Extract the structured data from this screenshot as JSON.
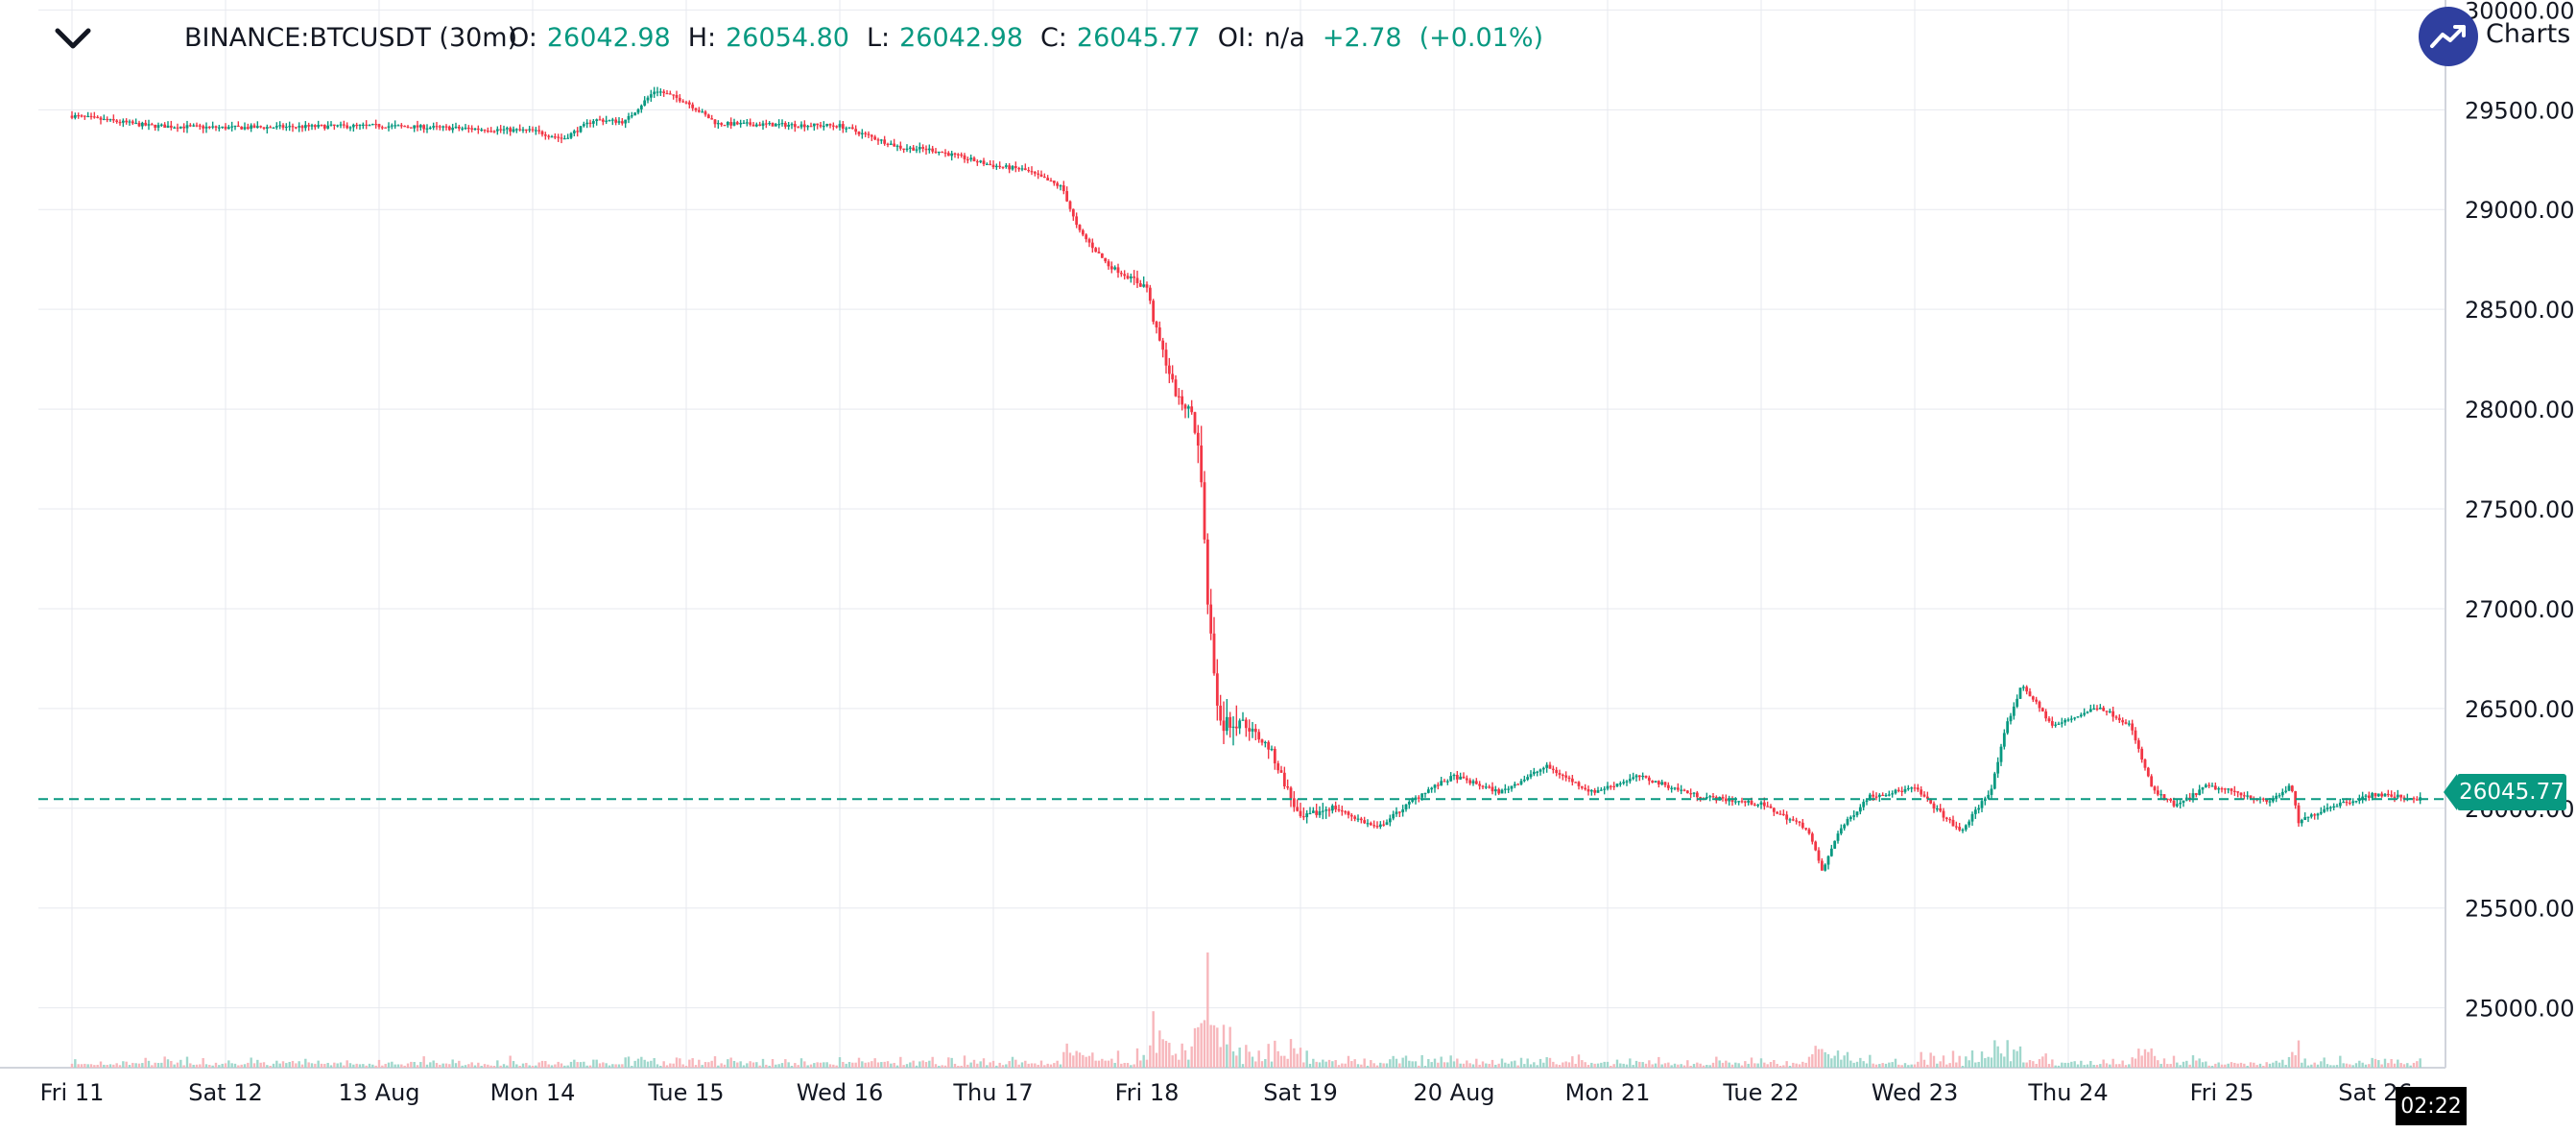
{
  "header": {
    "symbol": "BINANCE:BTCUSDT (30m)",
    "ohlc": [
      {
        "key": "O:",
        "value": "26042.98"
      },
      {
        "key": "H:",
        "value": "26054.80"
      },
      {
        "key": "L:",
        "value": "26042.98"
      },
      {
        "key": "C:",
        "value": "26045.77"
      },
      {
        "key": "OI:",
        "value": "n/a"
      },
      {
        "key": "",
        "value": "+2.78"
      },
      {
        "key": "",
        "value": "(+0.01%)"
      }
    ],
    "badge_text": "Charts"
  },
  "chart_data": {
    "type": "candlestick",
    "ylim": [
      24700,
      30050
    ],
    "yticks": [
      "25000.00",
      "25500.00",
      "26000.00",
      "26500.00",
      "27000.00",
      "27500.00",
      "28000.00",
      "28500.00",
      "29000.00",
      "29500.00",
      "30000.00"
    ],
    "xticks": [
      "Fri 11",
      "Sat 12",
      "13 Aug",
      "Mon 14",
      "Tue 15",
      "Wed 16",
      "Thu 17",
      "Fri 18",
      "Sat 19",
      "20 Aug",
      "Mon 21",
      "Tue 22",
      "Wed 23",
      "Thu 24",
      "Fri 25",
      "Sat 26"
    ],
    "last_price": "26045.77",
    "last_price_value": 26045.77,
    "cursor_time": "02:22",
    "colors": {
      "up": "#089981",
      "down": "#f23645",
      "up_volume": "#9fd7cc",
      "down_volume": "#f7b6bb",
      "grid": "#e7e9ef",
      "line": "#089981"
    },
    "price_path": [
      [
        0,
        29470
      ],
      [
        0.5,
        29420
      ],
      [
        1,
        29410
      ],
      [
        2,
        29420
      ],
      [
        3,
        29395
      ],
      [
        3.2,
        29355
      ],
      [
        3.4,
        29450
      ],
      [
        3.6,
        29440
      ],
      [
        3.8,
        29600
      ],
      [
        4,
        29540
      ],
      [
        4.2,
        29430
      ],
      [
        5,
        29420
      ],
      [
        5.4,
        29310
      ],
      [
        5.6,
        29300
      ],
      [
        6,
        29220
      ],
      [
        6.2,
        29200
      ],
      [
        6.45,
        29110
      ],
      [
        6.55,
        28900
      ],
      [
        6.75,
        28720
      ],
      [
        7,
        28610
      ],
      [
        7.05,
        28420
      ],
      [
        7.2,
        28050
      ],
      [
        7.3,
        27980
      ],
      [
        7.36,
        27650
      ],
      [
        7.38,
        27200
      ],
      [
        7.42,
        26820
      ],
      [
        7.48,
        26420
      ],
      [
        7.6,
        26450
      ],
      [
        7.8,
        26300
      ],
      [
        8.0,
        25940
      ],
      [
        8.2,
        26010
      ],
      [
        8.5,
        25900
      ],
      [
        8.8,
        26080
      ],
      [
        9.0,
        26160
      ],
      [
        9.3,
        26080
      ],
      [
        9.6,
        26210
      ],
      [
        9.9,
        26080
      ],
      [
        10.2,
        26160
      ],
      [
        10.6,
        26060
      ],
      [
        11.0,
        26020
      ],
      [
        11.3,
        25900
      ],
      [
        11.4,
        25680
      ],
      [
        11.5,
        25880
      ],
      [
        11.7,
        26060
      ],
      [
        12.0,
        26100
      ],
      [
        12.3,
        25880
      ],
      [
        12.5,
        26100
      ],
      [
        12.6,
        26420
      ],
      [
        12.7,
        26620
      ],
      [
        12.9,
        26410
      ],
      [
        13.2,
        26510
      ],
      [
        13.4,
        26420
      ],
      [
        13.55,
        26090
      ],
      [
        13.7,
        26010
      ],
      [
        13.9,
        26110
      ],
      [
        14.1,
        26080
      ],
      [
        14.3,
        26030
      ],
      [
        14.45,
        26110
      ],
      [
        14.5,
        25930
      ],
      [
        14.7,
        26010
      ],
      [
        15.0,
        26070
      ],
      [
        15.3,
        26045.77
      ]
    ]
  }
}
